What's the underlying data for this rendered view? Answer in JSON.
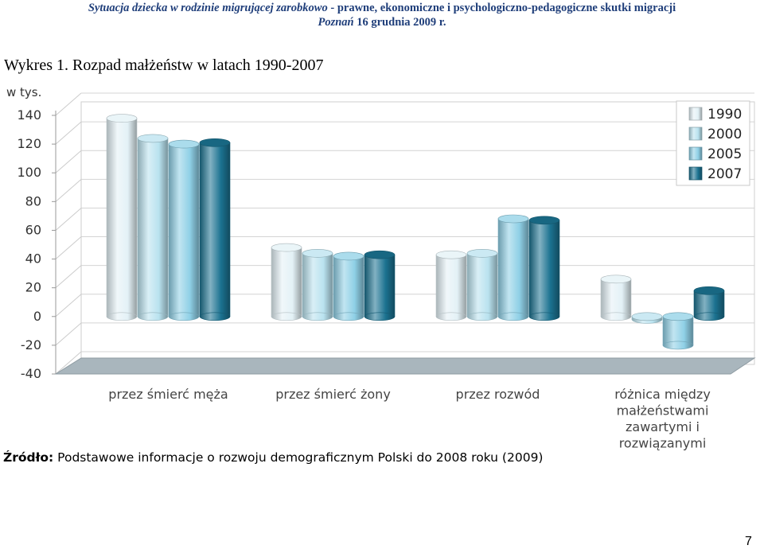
{
  "header": {
    "line1_italic": "Sytuacja dziecka w rodzinie migrującej zarobkowo",
    "line1_rest": " - prawne, ekonomiczne  i psychologiczno-pedagogiczne skutki migracji",
    "line2_italic": "Poznań",
    "line2_rest": " 16 grudnia 2009 r."
  },
  "chart_title": "Wykres 1. Rozpad małżeństw w latach 1990-2007",
  "source": {
    "label": "Źródło:",
    "text": " Podstawowe informacje o rozwoju demograficznym Polski do 2008 roku (2009)"
  },
  "page_number": "7",
  "chart_data": {
    "type": "bar",
    "unit_label": "w tys.",
    "categories": [
      [
        "przez śmierć męża"
      ],
      [
        "przez śmierć żony"
      ],
      [
        "przez rozwód"
      ],
      [
        "różnica między",
        "małżeństwami",
        "zawartymi i",
        "rozwiązanymi"
      ]
    ],
    "series": [
      {
        "name": "1990",
        "values": [
          138,
          48,
          43,
          26
        ],
        "color": "#e3f1f6"
      },
      {
        "name": "2000",
        "values": [
          124,
          44,
          44,
          -2
        ],
        "color": "#b9e2ef"
      },
      {
        "name": "2005",
        "values": [
          120,
          42,
          68,
          -20
        ],
        "color": "#8fd0e6"
      },
      {
        "name": "2007",
        "values": [
          121,
          43,
          67,
          18
        ],
        "color": "#1b7290"
      }
    ],
    "ylim": [
      -40,
      140
    ],
    "yticks": [
      "140",
      "120",
      "100",
      "80",
      "60",
      "40",
      "20",
      "0",
      "-20",
      "-40"
    ],
    "grid": true,
    "legend_position": "top-right"
  }
}
